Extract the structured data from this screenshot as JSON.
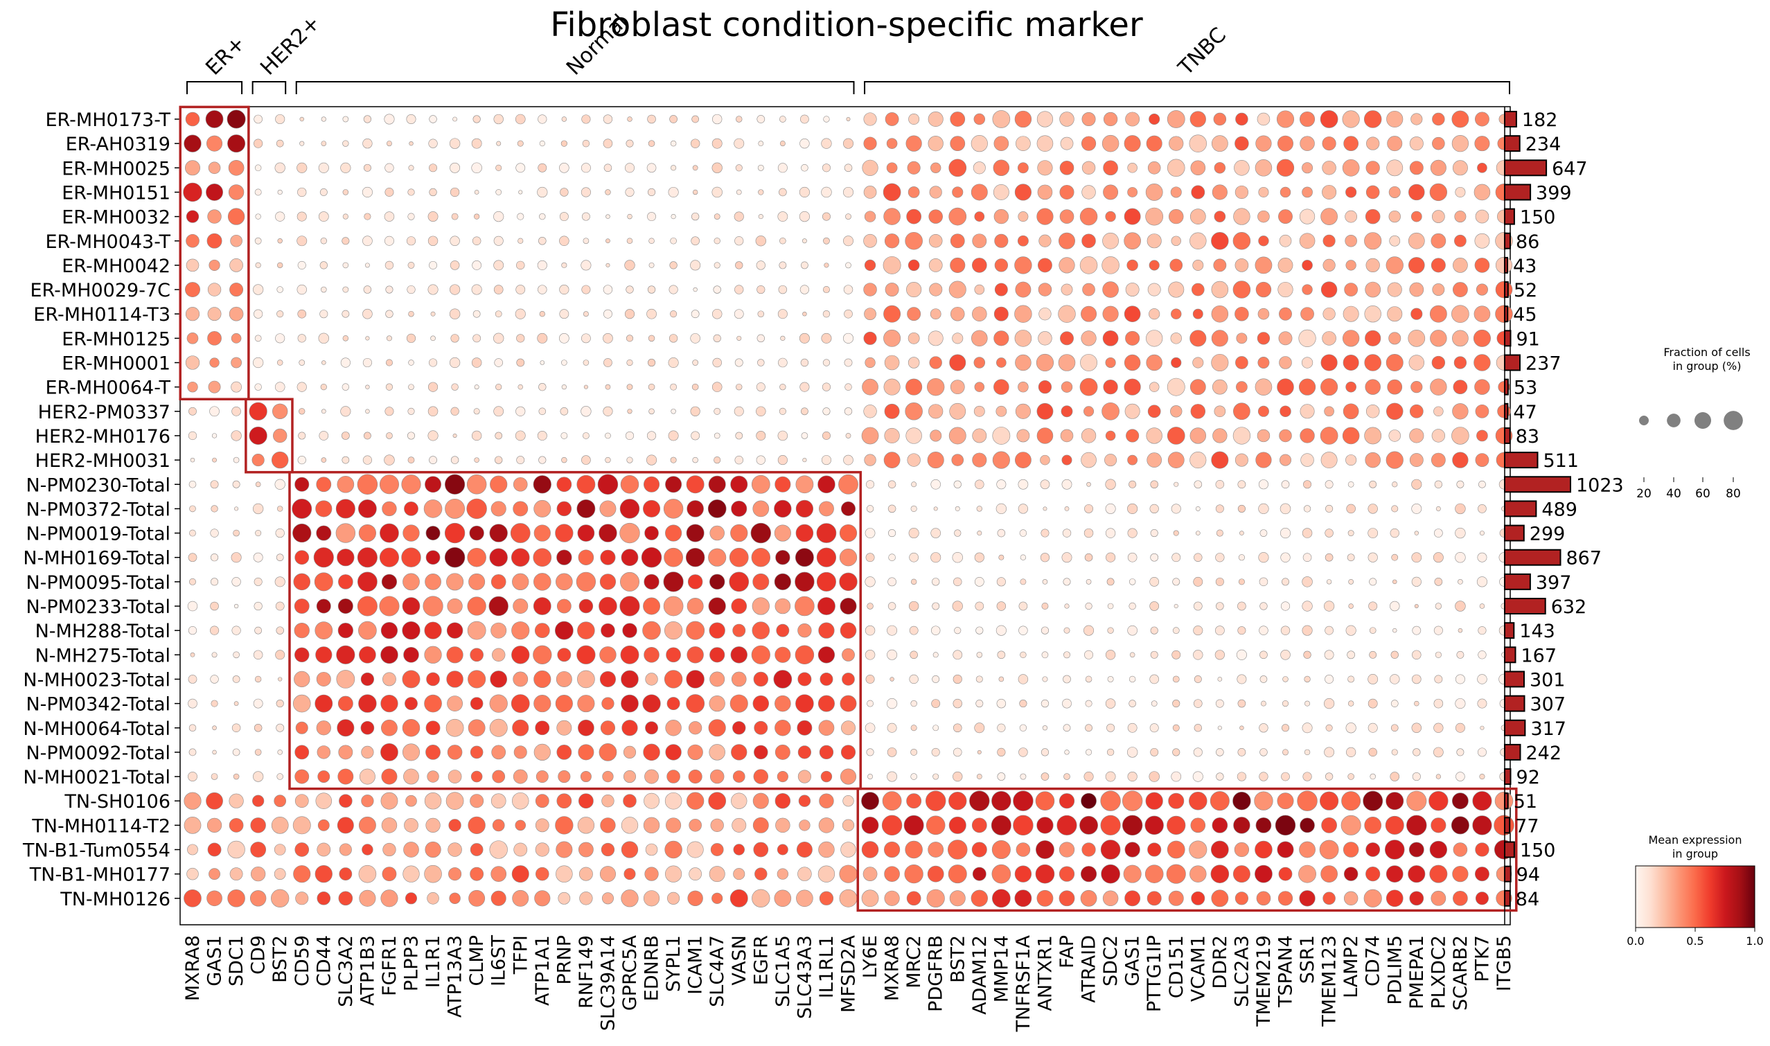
{
  "chart_data": {
    "type": "dotplot",
    "title": "Fibroblast condition-specific marker",
    "genes": [
      "MXRA8",
      "GAS1",
      "SDC1",
      "CD9",
      "BST2",
      "CD59",
      "CD44",
      "SLC3A2",
      "ATP1B3",
      "FGFR1",
      "PLPP3",
      "IL1R1",
      "ATP13A3",
      "CLMP",
      "IL6ST",
      "TFPI",
      "ATP1A1",
      "PRNP",
      "RNF149",
      "SLC39A14",
      "GPRC5A",
      "EDNRB",
      "SYPL1",
      "ICAM1",
      "SLC4A7",
      "VASN",
      "EGFR",
      "SLC1A5",
      "SLC43A3",
      "IL1RL1",
      "MFSD2A",
      "LY6E",
      "MXRA8",
      "MRC2",
      "PDGFRB",
      "BST2",
      "ADAM12",
      "MMP14",
      "TNFRSF1A",
      "ANTXR1",
      "FAP",
      "ATRAID",
      "SDC2",
      "GAS1",
      "PTTG1IP",
      "CD151",
      "VCAM1",
      "DDR2",
      "SLC2A3",
      "TMEM219",
      "TSPAN4",
      "SSR1",
      "TMEM123",
      "LAMP2",
      "CD74",
      "PDLIM5",
      "PMEPA1",
      "PLXDC2",
      "SCARB2",
      "PTK7",
      "ITGB5"
    ],
    "groups": [
      {
        "label": "ER+",
        "start": 0,
        "end": 2
      },
      {
        "label": "HER2+",
        "start": 3,
        "end": 4
      },
      {
        "label": "Normal",
        "start": 5,
        "end": 30
      },
      {
        "label": "TNBC",
        "start": 31,
        "end": 60
      }
    ],
    "samples": [
      "ER-MH0173-T",
      "ER-AH0319",
      "ER-MH0025",
      "ER-MH0151",
      "ER-MH0032",
      "ER-MH0043-T",
      "ER-MH0042",
      "ER-MH0029-7C",
      "ER-MH0114-T3",
      "ER-MH0125",
      "ER-MH0001",
      "ER-MH0064-T",
      "HER2-PM0337",
      "HER2-MH0176",
      "HER2-MH0031",
      "N-PM0230-Total",
      "N-PM0372-Total",
      "N-PM0019-Total",
      "N-MH0169-Total",
      "N-PM0095-Total",
      "N-PM0233-Total",
      "N-MH288-Total",
      "N-MH275-Total",
      "N-MH0023-Total",
      "N-PM0342-Total",
      "N-MH0064-Total",
      "N-PM0092-Total",
      "N-MH0021-Total",
      "TN-SH0106",
      "TN-MH0114-T2",
      "TN-B1-Tum0554",
      "TN-B1-MH0177",
      "TN-MH0126"
    ],
    "cell_counts": [
      182,
      234,
      647,
      399,
      150,
      86,
      43,
      52,
      45,
      91,
      237,
      53,
      47,
      83,
      511,
      1023,
      489,
      299,
      867,
      397,
      632,
      143,
      167,
      301,
      307,
      317,
      242,
      92,
      51,
      77,
      150,
      94,
      84
    ],
    "counts_xlim": [
      0,
      1023
    ],
    "highlight_boxes": [
      {
        "rows": [
          0,
          11
        ],
        "cols": [
          0,
          2
        ]
      },
      {
        "rows": [
          12,
          14
        ],
        "cols": [
          3,
          4
        ]
      },
      {
        "rows": [
          15,
          27
        ],
        "cols": [
          5,
          30
        ]
      },
      {
        "rows": [
          28,
          32
        ],
        "cols": [
          31,
          60
        ]
      }
    ],
    "size_legend": {
      "title": "Fraction of cells\nin group (%)",
      "ticks": [
        20,
        40,
        60,
        80
      ]
    },
    "color_legend": {
      "title": "Mean expression\nin group",
      "ticks": [
        "0.0",
        "0.5",
        "1.0"
      ],
      "colormap": "Reds",
      "range": [
        0,
        1
      ]
    },
    "colors": {
      "box": "#b22222",
      "bar": "#b22222"
    }
  }
}
